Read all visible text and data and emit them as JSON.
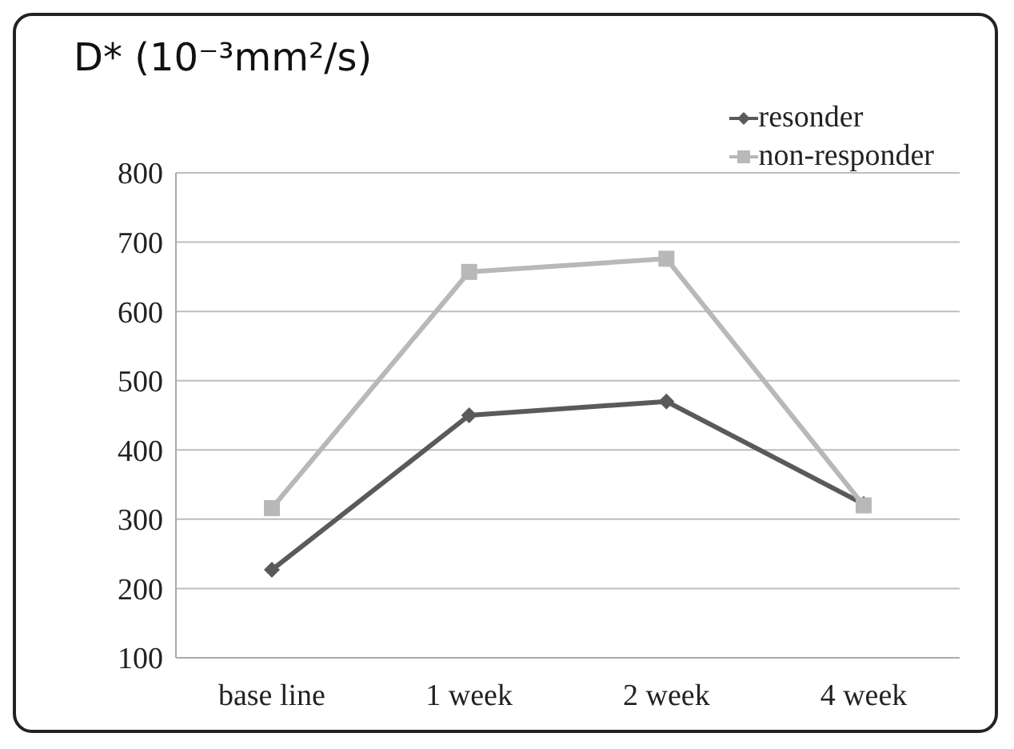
{
  "chart_data": {
    "type": "line",
    "title": "D* (10⁻³mm²/s)",
    "categories": [
      "base line",
      "1 week",
      "2 week",
      "4 week"
    ],
    "series": [
      {
        "name": "resonder",
        "color": "#5a5a5a",
        "marker": "diamond",
        "values": [
          227,
          450,
          470,
          322
        ]
      },
      {
        "name": "non-responder",
        "color": "#b8b8b8",
        "marker": "square",
        "values": [
          316,
          657,
          676,
          320
        ]
      }
    ],
    "ylim": [
      100,
      800
    ],
    "yticks": [
      100,
      200,
      300,
      400,
      500,
      600,
      700,
      800
    ],
    "grid": "y",
    "legend": "top right"
  }
}
